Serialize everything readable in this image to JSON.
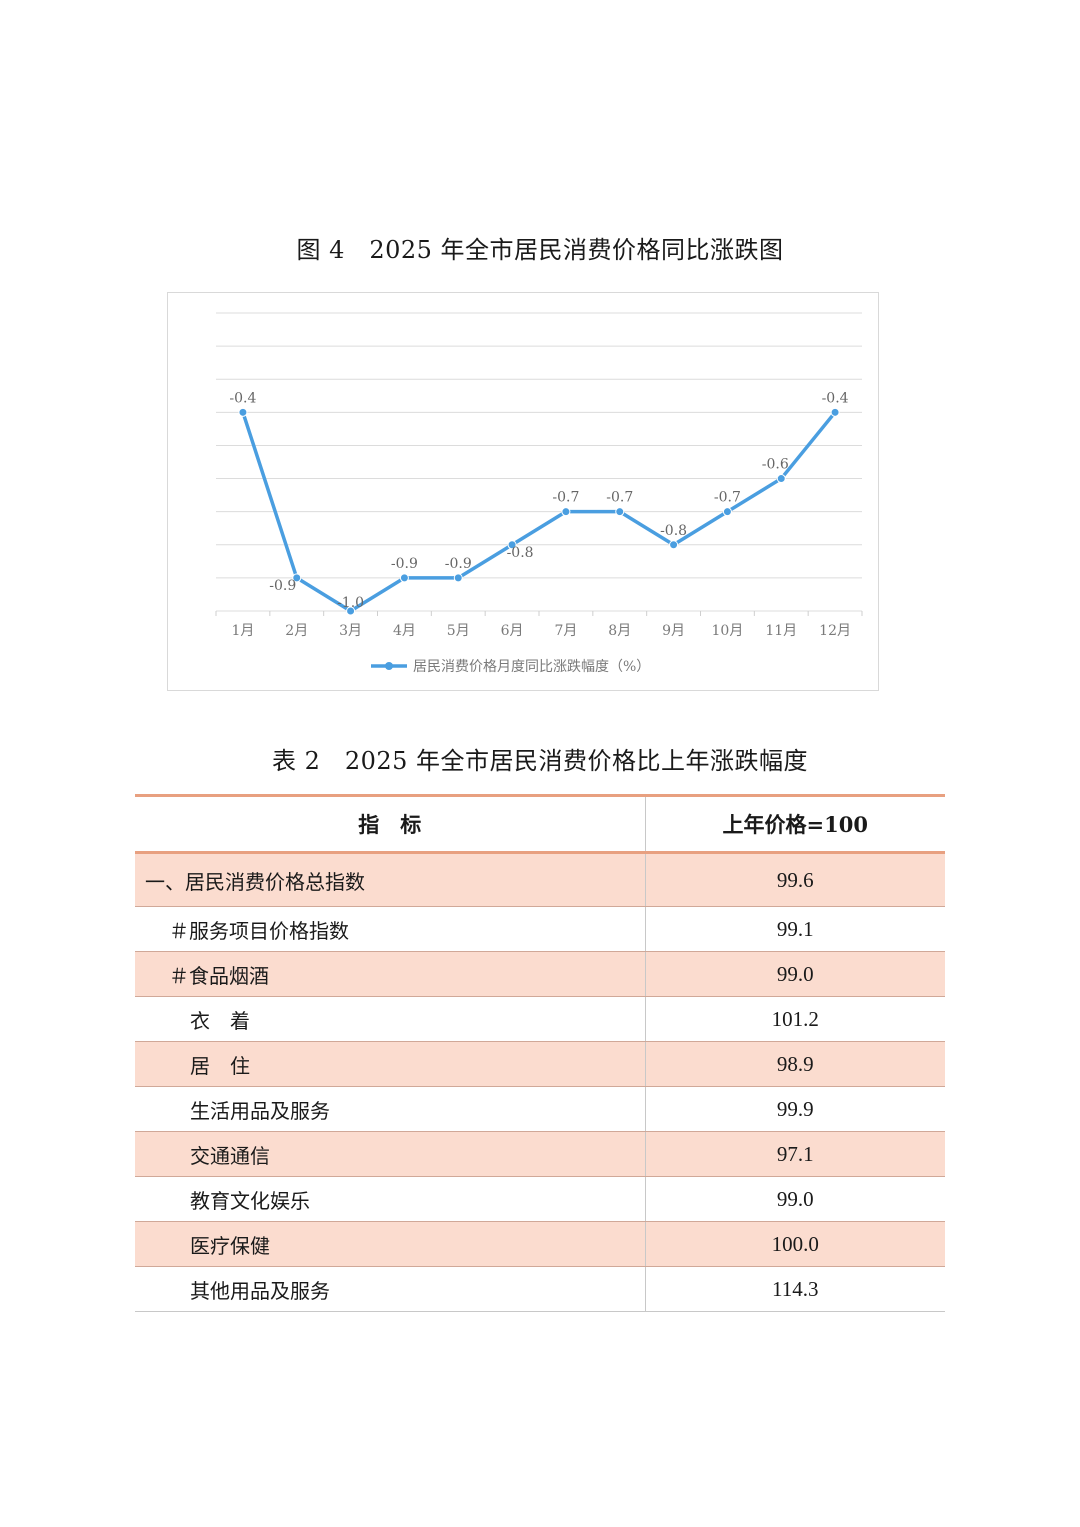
{
  "figure_title": "图 4　2025 年全市居民消费价格同比涨跌图",
  "chart_data": {
    "type": "line",
    "categories": [
      "1月",
      "2月",
      "3月",
      "4月",
      "5月",
      "6月",
      "7月",
      "8月",
      "9月",
      "10月",
      "11月",
      "12月"
    ],
    "series": [
      {
        "name": "居民消费价格月度同比涨跌幅度（%）",
        "values": [
          -0.4,
          -0.9,
          -1.0,
          -0.9,
          -0.9,
          -0.8,
          -0.7,
          -0.7,
          -0.8,
          -0.7,
          -0.6,
          -0.4
        ],
        "labels": [
          "-0.4",
          "-0.9",
          "-1.0",
          "-0.9",
          "-0.9",
          "-0.8",
          "-0.7",
          "-0.7",
          "-0.8",
          "-0.7",
          "-0.6",
          "-0.4"
        ]
      }
    ],
    "ylim": [
      -1.0,
      -0.1
    ],
    "grid": true,
    "legend": "bottom",
    "line_color": "#4a9ee0"
  },
  "table_title": "表 2　2025 年全市居民消费价格比上年涨跌幅度",
  "table": {
    "headers": [
      "指　标",
      "上年价格=100"
    ],
    "rows": [
      {
        "label": "一、居民消费价格总指数",
        "value": "99.6"
      },
      {
        "label": "＃服务项目价格指数",
        "value": "99.1"
      },
      {
        "label": "＃食品烟酒",
        "value": "99.0"
      },
      {
        "label": "衣　着",
        "value": "101.2"
      },
      {
        "label": "居　住",
        "value": "98.9"
      },
      {
        "label": "生活用品及服务",
        "value": "99.9"
      },
      {
        "label": "交通通信",
        "value": "97.1"
      },
      {
        "label": "教育文化娱乐",
        "value": "99.0"
      },
      {
        "label": "医疗保健",
        "value": "100.0"
      },
      {
        "label": "其他用品及服务",
        "value": "114.3"
      }
    ]
  },
  "colors": {
    "header_rule": "#e8a080",
    "row_shade": "#fbdccf"
  }
}
